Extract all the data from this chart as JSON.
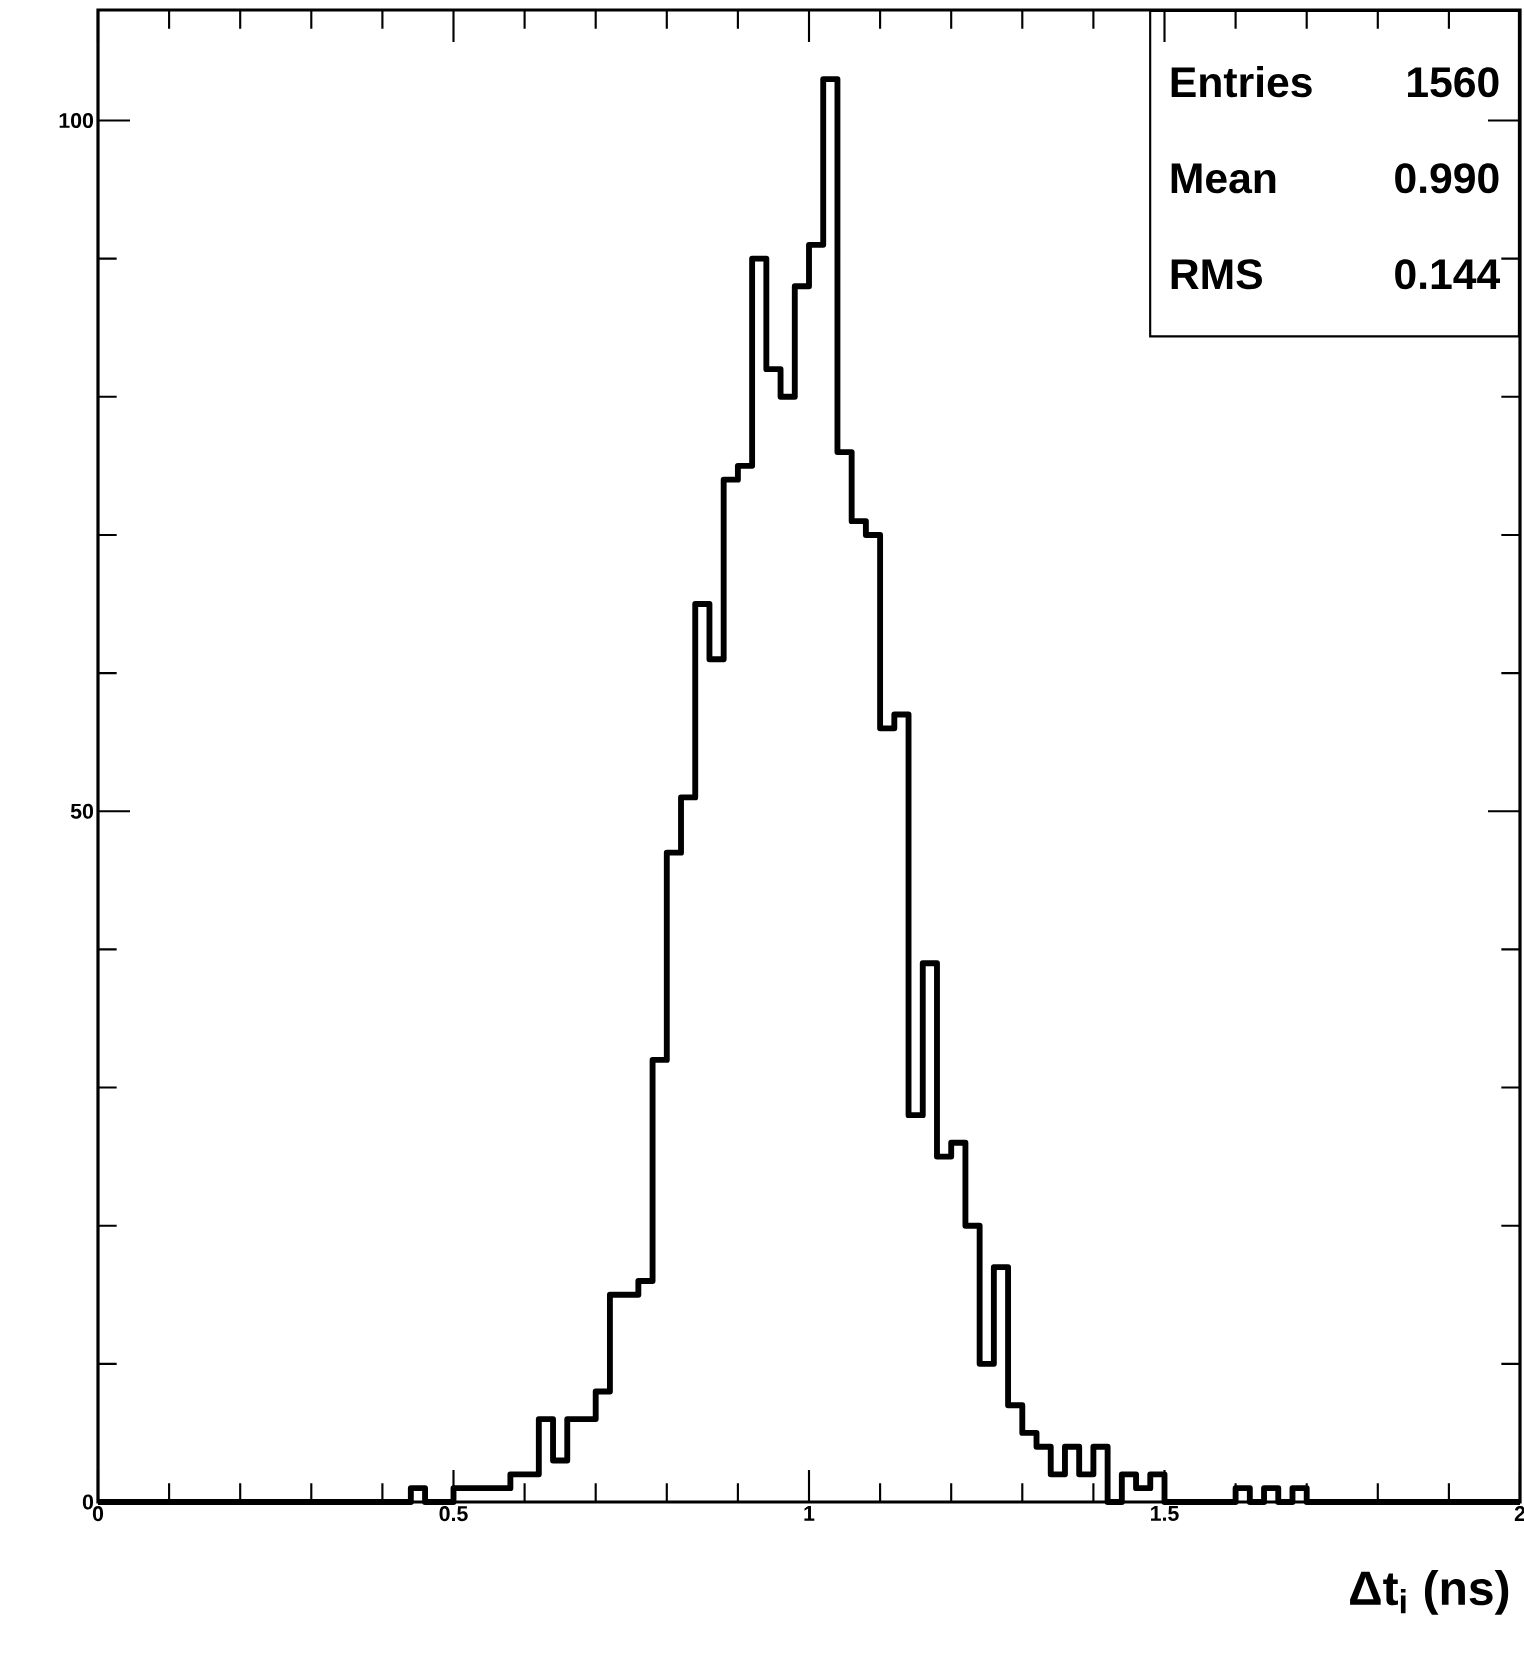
{
  "chart_data": {
    "type": "histogram",
    "bins": [
      0,
      0.02,
      0.04,
      0.06,
      0.08,
      0.1,
      0.12,
      0.14,
      0.16,
      0.18,
      0.2,
      0.22,
      0.24,
      0.26,
      0.28,
      0.3,
      0.32,
      0.34,
      0.36,
      0.38,
      0.4,
      0.42,
      0.44,
      0.46,
      0.48,
      0.5,
      0.52,
      0.54,
      0.56,
      0.58,
      0.6,
      0.62,
      0.64,
      0.66,
      0.68,
      0.7,
      0.72,
      0.74,
      0.76,
      0.78,
      0.8,
      0.82,
      0.84,
      0.86,
      0.88,
      0.9,
      0.92,
      0.94,
      0.96,
      0.98,
      1.0,
      1.02,
      1.04,
      1.06,
      1.08,
      1.1,
      1.12,
      1.14,
      1.16,
      1.18,
      1.2,
      1.22,
      1.24,
      1.26,
      1.28,
      1.3,
      1.32,
      1.34,
      1.36,
      1.38,
      1.4,
      1.42,
      1.44,
      1.46,
      1.48,
      1.5,
      1.52,
      1.54,
      1.56,
      1.58,
      1.6,
      1.62,
      1.64,
      1.66,
      1.68,
      1.7,
      1.72,
      1.74,
      1.76,
      1.78,
      1.8,
      1.82,
      1.84,
      1.86,
      1.88,
      1.9,
      1.92,
      1.94,
      1.96,
      1.98,
      2.0
    ],
    "values": [
      0,
      0,
      0,
      0,
      0,
      0,
      0,
      0,
      0,
      0,
      0,
      0,
      0,
      0,
      0,
      0,
      0,
      0,
      0,
      0,
      0,
      0,
      1,
      0,
      0,
      1,
      1,
      1,
      1,
      2,
      2,
      6,
      3,
      6,
      6,
      8,
      15,
      15,
      16,
      32,
      47,
      51,
      65,
      61,
      74,
      75,
      90,
      82,
      80,
      88,
      91,
      103,
      76,
      71,
      70,
      56,
      57,
      28,
      39,
      25,
      26,
      20,
      10,
      17,
      7,
      5,
      4,
      2,
      4,
      2,
      4,
      0,
      2,
      1,
      2,
      0,
      0,
      0,
      0,
      0,
      1,
      0,
      1,
      0,
      1,
      0,
      0,
      0,
      0,
      0,
      0,
      0,
      0,
      0,
      0,
      0,
      0,
      0,
      0,
      0
    ],
    "color": "#000000",
    "xlim": [
      0,
      2
    ],
    "ylim": [
      0,
      108
    ],
    "xticks": [
      0,
      {
        "value": 0.1,
        "label": null
      },
      {
        "value": 0.2,
        "label": null
      },
      {
        "value": 0.3,
        "label": null
      },
      {
        "value": 0.4,
        "label": null
      },
      0.5,
      {
        "value": 0.6,
        "label": null
      },
      {
        "value": 0.7,
        "label": null
      },
      {
        "value": 0.8,
        "label": null
      },
      {
        "value": 0.9,
        "label": null
      },
      1,
      {
        "value": 1.1,
        "label": null
      },
      {
        "value": 1.2,
        "label": null
      },
      {
        "value": 1.3,
        "label": null
      },
      {
        "value": 1.4,
        "label": null
      },
      1.5,
      {
        "value": 1.6,
        "label": null
      },
      {
        "value": 1.7,
        "label": null
      },
      {
        "value": 1.8,
        "label": null
      },
      {
        "value": 1.9,
        "label": null
      },
      2
    ],
    "yticks": [
      0,
      {
        "value": 10,
        "label": null
      },
      {
        "value": 20,
        "label": null
      },
      {
        "value": 30,
        "label": null
      },
      {
        "value": 40,
        "label": null
      },
      50,
      {
        "value": 60,
        "label": null
      },
      {
        "value": 70,
        "label": null
      },
      {
        "value": 80,
        "label": null
      },
      {
        "value": 90,
        "label": null
      },
      100
    ],
    "xlabel": "Δt$_{i}$ (ns)",
    "annotations": [
      "Entries",
      "1560",
      "Mean",
      "0.990",
      "RMS",
      "0.144"
    ]
  }
}
